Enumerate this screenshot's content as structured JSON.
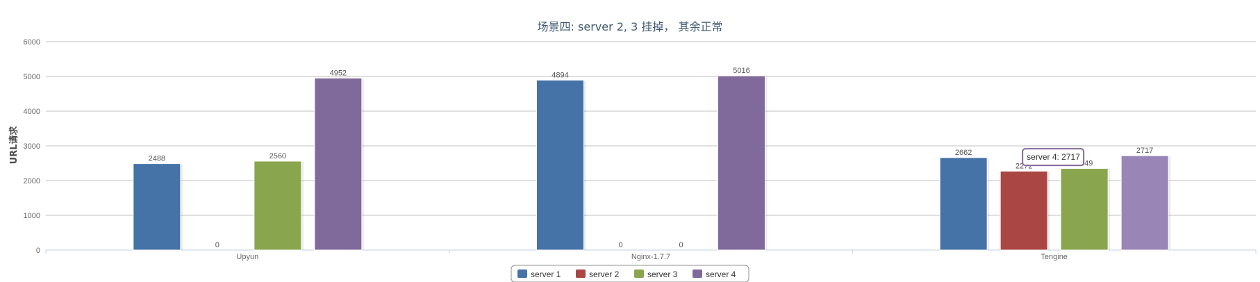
{
  "chart_data": {
    "type": "bar",
    "title": "场景四: server 2, 3 挂掉， 其余正常",
    "ylabel": "URL请求",
    "xlabel": "",
    "ylim": [
      0,
      6000
    ],
    "yticks": [
      0,
      1000,
      2000,
      3000,
      4000,
      5000,
      6000
    ],
    "categories": [
      "Upyun",
      "Nginx-1.7.7",
      "Tengine"
    ],
    "series": [
      {
        "name": "server 1",
        "color": "#4572a7",
        "values": [
          2488,
          4894,
          2662
        ]
      },
      {
        "name": "server 2",
        "color": "#aa4643",
        "values": [
          0,
          0,
          2272
        ]
      },
      {
        "name": "server 3",
        "color": "#89a54e",
        "values": [
          2560,
          0,
          2349
        ]
      },
      {
        "name": "server 4",
        "color": "#80699b",
        "values": [
          4952,
          5016,
          2717
        ]
      }
    ],
    "highlight": {
      "series": 3,
      "category": 2,
      "color": "#9a85b7"
    },
    "tooltip": {
      "text": "server 4: 2717",
      "series": 3,
      "category": 2
    },
    "legend": "bottom-center",
    "grid": true
  }
}
